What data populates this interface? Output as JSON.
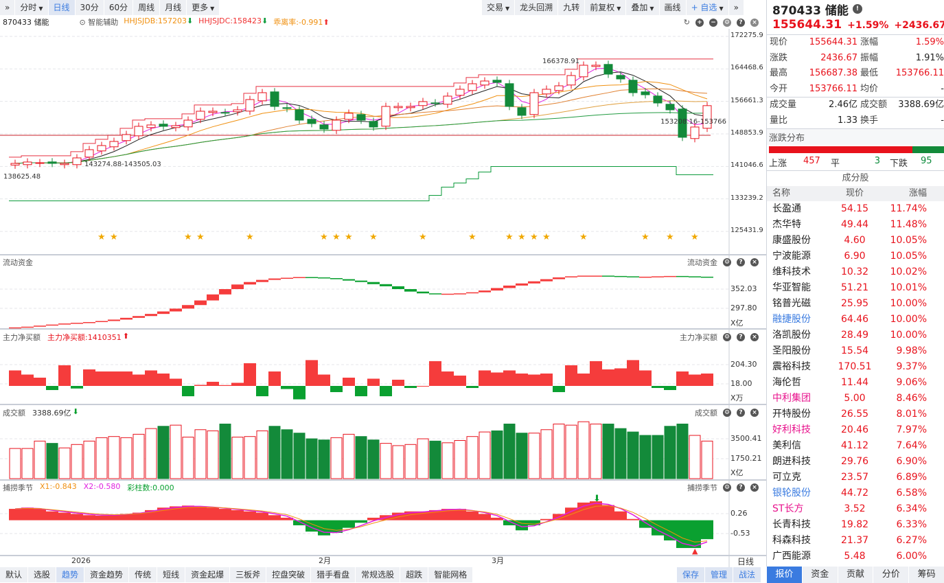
{
  "toolbar_left": [
    {
      "label": "分时",
      "dropdown": true
    },
    {
      "label": "日线",
      "active": true
    },
    {
      "label": "30分"
    },
    {
      "label": "60分"
    },
    {
      "label": "周线"
    },
    {
      "label": "月线"
    },
    {
      "label": "更多",
      "dropdown": true
    }
  ],
  "toolbar_right": [
    {
      "label": "交易",
      "dropdown": true
    },
    {
      "label": "龙头回溯"
    },
    {
      "label": "九转"
    },
    {
      "label": "前复权",
      "dropdown": true
    },
    {
      "label": "叠加",
      "dropdown": true
    },
    {
      "label": "画线"
    },
    {
      "label": "+ 自选",
      "dropdown": true
    }
  ],
  "info": {
    "code": "870433 储能",
    "assist": "智能辅助",
    "hhjsjdb": "HHJSJDB:157203",
    "hhjsjdc": "HHJSJDC:158423",
    "deviation": "乖离率:-0.991"
  },
  "main_axis": [
    "172275.9",
    "164468.6",
    "156661.3",
    "148853.9",
    "141046.6",
    "133239.2",
    "125431.9"
  ],
  "annotations": {
    "high": "166378.91",
    "range1": "143274.88-143505.03",
    "low": "138625.48",
    "range2": "153208.16-153766"
  },
  "panels": {
    "liquidity": {
      "title": "流动资金",
      "axis": [
        "352.03",
        "297.80"
      ],
      "unit": "X亿"
    },
    "netbuy": {
      "title": "主力净买额",
      "value": "主力净买额:1410351",
      "axis": [
        "204.30",
        "18.00"
      ],
      "unit": "X万"
    },
    "turnover": {
      "title": "成交额",
      "value": "3388.69亿",
      "axis": [
        "3500.41",
        "1750.21"
      ],
      "unit": "X亿"
    },
    "season": {
      "title": "捕捞季节",
      "x1": "X1:-0.843",
      "x2": "X2:-0.580",
      "bars": "彩柱数:0.000",
      "axis": [
        "0.26",
        "-0.53"
      ]
    }
  },
  "date_labels": [
    {
      "label": "2026",
      "index": 5
    },
    {
      "label": "2月",
      "index": 25
    },
    {
      "label": "3月",
      "index": 39
    }
  ],
  "period_label": "日线",
  "chart_data": {
    "type": "candlestick",
    "closes": [
      141769,
      142099,
      141934,
      141769,
      141769,
      143089,
      145067,
      146057,
      147046,
      148695,
      150674,
      151004,
      150674,
      150839,
      152158,
      154302,
      154302,
      153972,
      154632,
      157105,
      158754,
      155456,
      154961,
      152158,
      151333,
      150014,
      152158,
      153807,
      152158,
      150509,
      155456,
      155456,
      155456,
      156610,
      156280,
      157929,
      159578,
      160897,
      161557,
      161227,
      155456,
      153312,
      158754,
      159578,
      160403,
      162876,
      165350,
      165350,
      163206,
      162052,
      158754,
      158259,
      156280,
      154632,
      148036,
      150509,
      155644
    ],
    "star_indices": [
      7,
      8,
      14,
      15,
      19,
      25,
      26,
      27,
      29,
      33,
      37,
      40,
      41,
      42,
      43,
      46,
      51,
      53,
      55
    ],
    "liquidity": [
      244,
      246,
      249,
      252,
      255,
      257,
      259,
      262,
      266,
      271,
      276,
      282,
      289,
      297,
      307,
      320,
      337,
      352,
      365,
      372,
      378,
      382,
      384,
      386,
      385,
      383,
      380,
      376,
      372,
      366,
      360,
      352,
      345,
      340,
      339,
      339,
      340,
      343,
      348,
      355,
      362,
      368,
      374,
      380,
      385,
      388,
      390,
      390,
      389,
      388,
      387,
      387,
      388,
      389,
      388,
      387,
      386
    ],
    "netbuy": [
      150,
      110,
      80,
      -40,
      200,
      -25,
      160,
      140,
      140,
      140,
      110,
      150,
      120,
      70,
      -100,
      10,
      40,
      8,
      30,
      220,
      -100,
      140,
      -30,
      -130,
      250,
      110,
      -60,
      80,
      -100,
      70,
      -100,
      60,
      -20,
      0,
      240,
      140,
      100,
      -20,
      150,
      130,
      150,
      120,
      110,
      120,
      -60,
      200,
      120,
      240,
      160,
      170,
      250,
      150,
      -20,
      -40,
      140,
      110,
      120
    ],
    "turnover": [
      2650,
      2650,
      3300,
      3100,
      2700,
      3000,
      3300,
      3600,
      3700,
      3600,
      3900,
      4400,
      4600,
      4700,
      3650,
      4300,
      4200,
      4800,
      3650,
      3700,
      4200,
      4600,
      4300,
      4000,
      3500,
      3400,
      3600,
      3900,
      3700,
      3400,
      3100,
      2900,
      3000,
      3500,
      3300,
      3150,
      3350,
      3700,
      4100,
      4200,
      4800,
      4000,
      4000,
      4300,
      4800,
      4700,
      5000,
      4800,
      4800,
      4400,
      4100,
      3800,
      3800,
      4600,
      4800,
      3800,
      3300
    ],
    "season": [
      0.45,
      0.5,
      0.45,
      0.35,
      0.3,
      0.25,
      0.2,
      0.18,
      0.2,
      0.25,
      0.3,
      0.4,
      0.5,
      0.55,
      0.58,
      0.55,
      0.5,
      0.45,
      0.4,
      0.35,
      0.3,
      0.2,
      0.1,
      -0.2,
      -0.45,
      -0.6,
      -0.5,
      -0.3,
      -0.1,
      0.1,
      0.2,
      0.3,
      0.35,
      0.35,
      0.4,
      0.45,
      0.45,
      0.35,
      0.25,
      0.1,
      -0.2,
      -0.4,
      -0.2,
      0.05,
      0.25,
      0.5,
      0.7,
      0.75,
      0.6,
      0.35,
      0.05,
      -0.3,
      -0.6,
      -0.8,
      -1.1,
      -1.1,
      -0.75
    ],
    "price_range": [
      125431.9,
      172275.9
    ]
  },
  "quote": {
    "title": "870433 储能",
    "price": "155644.31",
    "pct": "+1.59%",
    "chg": "+2436.67",
    "rows": [
      [
        "现价",
        "155644.31",
        "red",
        "涨幅",
        "1.59%",
        "red"
      ],
      [
        "涨跌",
        "2436.67",
        "red",
        "振幅",
        "1.91%",
        "blk"
      ],
      [
        "最高",
        "156687.38",
        "red",
        "最低",
        "153766.11",
        "red"
      ],
      [
        "今开",
        "153766.11",
        "red",
        "均价",
        "-",
        "blk"
      ]
    ],
    "rows2": [
      [
        "成交量",
        "2.46亿",
        "blk",
        "成交额",
        "3388.69亿",
        "blk"
      ],
      [
        "量比",
        "1.33",
        "blk",
        "换手",
        "-",
        "blk"
      ]
    ]
  },
  "distribution": {
    "title": "涨跌分布",
    "up_label": "上涨",
    "up": "457",
    "flat_label": "平",
    "flat": "3",
    "down_label": "下跌",
    "down": "95",
    "up_fraction": 0.82
  },
  "constituents": {
    "title": "成分股",
    "headers": [
      "名称",
      "现价",
      "涨幅"
    ],
    "rows": [
      [
        "长盈通",
        "54.15",
        "11.74%",
        "#222"
      ],
      [
        "杰华特",
        "49.44",
        "11.48%",
        "#222"
      ],
      [
        "康盛股份",
        "4.60",
        "10.05%",
        "#222"
      ],
      [
        "宁波能源",
        "6.90",
        "10.05%",
        "#222"
      ],
      [
        "维科技术",
        "10.32",
        "10.02%",
        "#222"
      ],
      [
        "华亚智能",
        "51.21",
        "10.01%",
        "#222"
      ],
      [
        "铭普光磁",
        "25.95",
        "10.00%",
        "#222"
      ],
      [
        "融捷股份",
        "64.46",
        "10.00%",
        "#3a7be0"
      ],
      [
        "洛凯股份",
        "28.49",
        "10.00%",
        "#222"
      ],
      [
        "圣阳股份",
        "15.54",
        "9.98%",
        "#222"
      ],
      [
        "震裕科技",
        "170.51",
        "9.37%",
        "#222"
      ],
      [
        "海伦哲",
        "11.44",
        "9.06%",
        "#222"
      ],
      [
        "中利集团",
        "5.00",
        "8.46%",
        "#e8128c"
      ],
      [
        "开特股份",
        "26.55",
        "8.01%",
        "#222"
      ],
      [
        "好利科技",
        "20.46",
        "7.97%",
        "#e8128c"
      ],
      [
        "美利信",
        "41.12",
        "7.64%",
        "#222"
      ],
      [
        "朗进科技",
        "29.76",
        "6.90%",
        "#222"
      ],
      [
        "可立克",
        "23.57",
        "6.89%",
        "#222"
      ],
      [
        "银轮股份",
        "44.72",
        "6.58%",
        "#3a7be0"
      ],
      [
        "ST长方",
        "3.52",
        "6.34%",
        "#e8128c"
      ],
      [
        "长青科技",
        "19.82",
        "6.33%",
        "#222"
      ],
      [
        "科森科技",
        "21.37",
        "6.27%",
        "#222"
      ],
      [
        "广西能源",
        "5.48",
        "6.00%",
        "#222"
      ]
    ]
  },
  "bottom_tabs": [
    "默认",
    "选股",
    "趋势",
    "资金趋势",
    "传统",
    "短线",
    "资金起爆",
    "三板斧",
    "控盘突破",
    "猎手看盘",
    "常规选股",
    "超跌",
    "智能网格"
  ],
  "bottom_right": [
    "保存",
    "管理",
    "战法"
  ],
  "right_tabs": [
    "报价",
    "资金",
    "贡献",
    "分价",
    "筹码"
  ]
}
